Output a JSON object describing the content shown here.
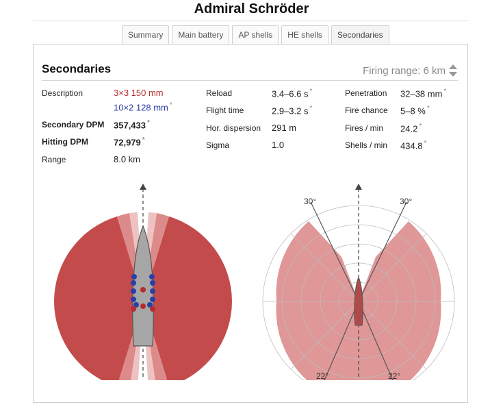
{
  "ship_name": "Admiral Schröder",
  "tabs": [
    {
      "label": "Summary",
      "active": false
    },
    {
      "label": "Main battery",
      "active": false
    },
    {
      "label": "AP shells",
      "active": false
    },
    {
      "label": "HE shells",
      "active": false
    },
    {
      "label": "Secondaries",
      "active": true
    }
  ],
  "section_title": "Secondaries",
  "firing_range": {
    "label": "Firing range:",
    "value": "6 km"
  },
  "stats": {
    "description": {
      "label": "Description",
      "line1": "3×3 150 mm",
      "line2": "10×2 128 mm",
      "line2_star": "*"
    },
    "secondary_dpm": {
      "label": "Secondary DPM",
      "value": "357,433",
      "star": "*"
    },
    "hitting_dpm": {
      "label": "Hitting DPM",
      "value": "72,979",
      "star": "*"
    },
    "range": {
      "label": "Range",
      "value": "8.0 km"
    },
    "reload": {
      "label": "Reload",
      "value": "3.4–6.6 s",
      "star": "*"
    },
    "flight_time": {
      "label": "Flight time",
      "value": "2.9–3.2 s",
      "star": "*"
    },
    "hor_dispersion": {
      "label": "Hor. dispersion",
      "value": "291 m"
    },
    "sigma": {
      "label": "Sigma",
      "value": "1.0"
    },
    "penetration": {
      "label": "Penetration",
      "value": "32–38 mm",
      "star": "*"
    },
    "fire_chance": {
      "label": "Fire chance",
      "value": "5–8 %",
      "star": "*"
    },
    "fires_per_min": {
      "label": "Fires / min",
      "value": "24.2",
      "star": "*"
    },
    "shells_per_min": {
      "label": "Shells / min",
      "value": "434.8",
      "star": "*"
    }
  },
  "arc_diagram": {
    "angle_labels": {
      "top_left": "30°",
      "top_right": "30°",
      "bottom_left": "22°",
      "bottom_right": "22°"
    },
    "forward_blind_arc_deg": 30,
    "rear_blind_arc_deg": 22
  },
  "colors": {
    "arc_red": "#c44b4b",
    "arc_light": "#e6a0a0",
    "polar_fill": "#d98585",
    "gun_red": "#b82c2c",
    "gun_blue": "#2a3ea8",
    "hull": "#a0a0a0"
  }
}
